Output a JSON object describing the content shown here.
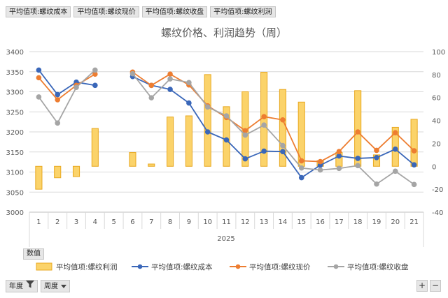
{
  "field_buttons": [
    "平均值项:螺纹成本",
    "平均值项:螺纹现价",
    "平均值项:螺纹收盘",
    "平均值项:螺纹利润"
  ],
  "values_button": "数值",
  "filters": [
    {
      "label": "年度"
    },
    {
      "label": "周度"
    }
  ],
  "zoom": {
    "plus": "+",
    "minus": "−"
  },
  "chart_data": {
    "type": "bar+line",
    "title": "螺纹价格、利润趋势（周）",
    "year_label": "2025",
    "categories": [
      "1",
      "2",
      "3",
      "4",
      "5",
      "6",
      "7",
      "8",
      "9",
      "10",
      "11",
      "12",
      "13",
      "14",
      "15",
      "16",
      "17",
      "18",
      "19",
      "20",
      "21"
    ],
    "y_left": {
      "min": 3000,
      "max": 3400,
      "step": 50
    },
    "y_right": {
      "min": -40,
      "max": 100,
      "step": 20
    },
    "bars": {
      "name": "平均值项:螺纹利润",
      "axis": "right",
      "color": "#fbd36a",
      "stroke": "#e8a820",
      "values": [
        -20,
        -10,
        -9,
        33,
        null,
        12,
        2,
        43,
        44,
        80,
        52,
        65,
        82,
        67,
        56,
        5,
        12,
        66,
        10,
        34,
        41
      ]
    },
    "lines": [
      {
        "name": "平均值项:螺纹成本",
        "axis": "left",
        "color": "#3a67b9",
        "values": [
          3354,
          3293,
          3324,
          3316,
          null,
          3338,
          3316,
          3306,
          3272,
          3200,
          3180,
          3133,
          3152,
          3151,
          3086,
          3117,
          3140,
          3134,
          3136,
          3157,
          3118
        ]
      },
      {
        "name": "平均值项:螺纹现价",
        "axis": "left",
        "color": "#ed7d31",
        "values": [
          3335,
          3280,
          3316,
          3344,
          null,
          3349,
          3316,
          3344,
          3317,
          3265,
          3236,
          3203,
          3238,
          3230,
          3128,
          3126,
          3151,
          3200,
          3154,
          3198,
          3153
        ]
      },
      {
        "name": "平均值项:螺纹收盘",
        "axis": "left",
        "color": "#a5a5a5",
        "values": [
          3287,
          3222,
          3311,
          3354,
          null,
          3345,
          3285,
          3332,
          3323,
          3262,
          3240,
          3192,
          3217,
          3166,
          3110,
          3105,
          3109,
          3116,
          3070,
          3102,
          3069
        ]
      }
    ],
    "grid": true,
    "legend": "bottom"
  }
}
